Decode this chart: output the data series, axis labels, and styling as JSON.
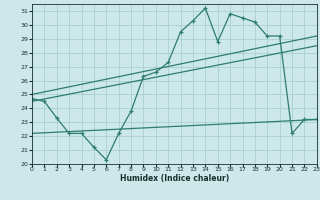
{
  "xlabel": "Humidex (Indice chaleur)",
  "bg_color": "#cce8e8",
  "grid_color": "#aacece",
  "line_color": "#2e7d6e",
  "xlim": [
    0,
    23
  ],
  "ylim": [
    20,
    31.5
  ],
  "yticks": [
    20,
    21,
    22,
    23,
    24,
    25,
    26,
    27,
    28,
    29,
    30,
    31
  ],
  "xticks": [
    0,
    1,
    2,
    3,
    4,
    5,
    6,
    7,
    8,
    9,
    10,
    11,
    12,
    13,
    14,
    15,
    16,
    17,
    18,
    19,
    20,
    21,
    22,
    23
  ],
  "series1_x": [
    0,
    1,
    2,
    3,
    4,
    5,
    6,
    7,
    8,
    9,
    10,
    11,
    12,
    13,
    14,
    15,
    16,
    17,
    18,
    19,
    20,
    21,
    22,
    23
  ],
  "series1_y": [
    24.7,
    24.5,
    23.3,
    22.2,
    22.2,
    21.2,
    20.3,
    22.2,
    23.8,
    26.3,
    26.6,
    27.3,
    29.5,
    30.3,
    31.2,
    28.8,
    30.8,
    30.5,
    30.2,
    29.2,
    29.2,
    22.2,
    23.2,
    23.2
  ],
  "trend1_x": [
    0,
    23
  ],
  "trend1_y": [
    25.0,
    29.2
  ],
  "trend2_x": [
    0,
    23
  ],
  "trend2_y": [
    24.5,
    28.5
  ],
  "trend3_x": [
    0,
    23
  ],
  "trend3_y": [
    22.2,
    23.2
  ]
}
